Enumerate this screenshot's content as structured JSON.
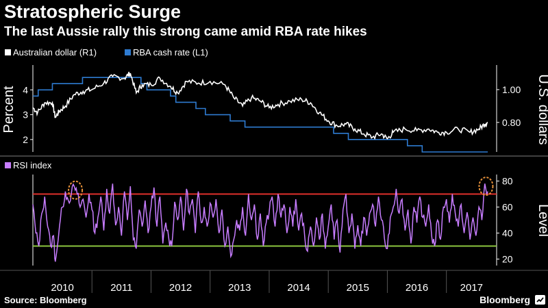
{
  "header": {
    "title": "Stratospheric Surge",
    "subtitle": "The last Aussie rally this strong came amid RBA rate hikes"
  },
  "footer": {
    "source": "Source: Bloomberg",
    "brand": "Bloomberg"
  },
  "colors": {
    "background": "#000000",
    "aud_line": "#ffffff",
    "rba_line": "#2e7bd1",
    "rsi_line": "#c77dff",
    "overbought_line": "#e0302b",
    "oversold_line": "#8cc63f",
    "highlight_circle": "#e8923a"
  },
  "chart_data": [
    {
      "type": "line",
      "legend_position": "top-left",
      "x_range": [
        2010.0,
        2017.85
      ],
      "left_axis": {
        "label": "Percent",
        "range": [
          1.5,
          5.0
        ],
        "ticks": [
          2,
          3,
          4
        ]
      },
      "right_axis": {
        "label": "U.S. dollars",
        "range": [
          0.62,
          1.15
        ],
        "ticks": [
          "0.80",
          "1.00"
        ]
      },
      "series": [
        {
          "name": "RBA cash rate (L1)",
          "axis": "left",
          "step": true,
          "points": [
            [
              2010.0,
              3.75
            ],
            [
              2010.09,
              4.0
            ],
            [
              2010.33,
              4.25
            ],
            [
              2010.84,
              4.5
            ],
            [
              2011.83,
              4.25
            ],
            [
              2011.93,
              4.0
            ],
            [
              2012.33,
              3.75
            ],
            [
              2012.42,
              3.5
            ],
            [
              2012.76,
              3.25
            ],
            [
              2012.92,
              3.0
            ],
            [
              2013.34,
              2.75
            ],
            [
              2013.59,
              2.5
            ],
            [
              2015.09,
              2.25
            ],
            [
              2015.34,
              2.0
            ],
            [
              2016.34,
              1.75
            ],
            [
              2016.59,
              1.5
            ],
            [
              2017.7,
              1.5
            ]
          ]
        },
        {
          "name": "Australian dollar (R1)",
          "axis": "right",
          "points": [
            [
              2010.0,
              0.89
            ],
            [
              2010.08,
              0.86
            ],
            [
              2010.2,
              0.92
            ],
            [
              2010.33,
              0.92
            ],
            [
              2010.38,
              0.83
            ],
            [
              2010.45,
              0.87
            ],
            [
              2010.55,
              0.9
            ],
            [
              2010.7,
              0.97
            ],
            [
              2010.85,
              0.99
            ],
            [
              2011.0,
              1.0
            ],
            [
              2011.2,
              1.04
            ],
            [
              2011.35,
              1.08
            ],
            [
              2011.55,
              1.07
            ],
            [
              2011.65,
              1.1
            ],
            [
              2011.75,
              0.98
            ],
            [
              2011.85,
              1.03
            ],
            [
              2012.0,
              1.03
            ],
            [
              2012.15,
              1.07
            ],
            [
              2012.33,
              1.02
            ],
            [
              2012.45,
              0.98
            ],
            [
              2012.6,
              1.05
            ],
            [
              2012.8,
              1.04
            ],
            [
              2013.0,
              1.05
            ],
            [
              2013.25,
              1.03
            ],
            [
              2013.4,
              0.95
            ],
            [
              2013.55,
              0.9
            ],
            [
              2013.7,
              0.95
            ],
            [
              2013.85,
              0.93
            ],
            [
              2014.0,
              0.89
            ],
            [
              2014.15,
              0.91
            ],
            [
              2014.35,
              0.93
            ],
            [
              2014.55,
              0.94
            ],
            [
              2014.7,
              0.92
            ],
            [
              2014.85,
              0.86
            ],
            [
              2015.0,
              0.81
            ],
            [
              2015.15,
              0.78
            ],
            [
              2015.3,
              0.79
            ],
            [
              2015.45,
              0.76
            ],
            [
              2015.6,
              0.73
            ],
            [
              2015.75,
              0.71
            ],
            [
              2015.9,
              0.73
            ],
            [
              2016.0,
              0.7
            ],
            [
              2016.1,
              0.74
            ],
            [
              2016.3,
              0.76
            ],
            [
              2016.5,
              0.75
            ],
            [
              2016.7,
              0.76
            ],
            [
              2016.85,
              0.74
            ],
            [
              2017.0,
              0.74
            ],
            [
              2017.2,
              0.76
            ],
            [
              2017.4,
              0.74
            ],
            [
              2017.55,
              0.76
            ],
            [
              2017.65,
              0.79
            ],
            [
              2017.7,
              0.8
            ]
          ]
        }
      ]
    },
    {
      "type": "line",
      "x_range": [
        2010.0,
        2017.85
      ],
      "y_axis": {
        "label": "Level",
        "range": [
          15,
          85
        ],
        "ticks": [
          20,
          40,
          60,
          80
        ]
      },
      "reference_lines": [
        {
          "value": 70,
          "color": "#e0302b"
        },
        {
          "value": 30,
          "color": "#8cc63f"
        }
      ],
      "highlights": [
        {
          "x": 2010.72,
          "y": 73
        },
        {
          "x": 2017.67,
          "y": 76
        }
      ],
      "series": [
        {
          "name": "RSI index",
          "points": [
            [
              2010.0,
              62
            ],
            [
              2010.05,
              40
            ],
            [
              2010.1,
              30
            ],
            [
              2010.15,
              55
            ],
            [
              2010.2,
              68
            ],
            [
              2010.25,
              45
            ],
            [
              2010.3,
              30
            ],
            [
              2010.35,
              38
            ],
            [
              2010.38,
              18
            ],
            [
              2010.45,
              45
            ],
            [
              2010.5,
              60
            ],
            [
              2010.55,
              72
            ],
            [
              2010.6,
              65
            ],
            [
              2010.65,
              70
            ],
            [
              2010.7,
              76
            ],
            [
              2010.75,
              70
            ],
            [
              2010.8,
              60
            ],
            [
              2010.85,
              66
            ],
            [
              2010.9,
              52
            ],
            [
              2010.95,
              70
            ],
            [
              2011.0,
              58
            ],
            [
              2011.05,
              40
            ],
            [
              2011.1,
              52
            ],
            [
              2011.15,
              68
            ],
            [
              2011.2,
              42
            ],
            [
              2011.25,
              74
            ],
            [
              2011.3,
              55
            ],
            [
              2011.35,
              78
            ],
            [
              2011.4,
              46
            ],
            [
              2011.45,
              60
            ],
            [
              2011.5,
              38
            ],
            [
              2011.55,
              72
            ],
            [
              2011.6,
              50
            ],
            [
              2011.65,
              76
            ],
            [
              2011.7,
              35
            ],
            [
              2011.75,
              28
            ],
            [
              2011.8,
              58
            ],
            [
              2011.85,
              45
            ],
            [
              2011.9,
              65
            ],
            [
              2011.95,
              40
            ],
            [
              2012.0,
              60
            ],
            [
              2012.05,
              75
            ],
            [
              2012.1,
              45
            ],
            [
              2012.15,
              68
            ],
            [
              2012.2,
              32
            ],
            [
              2012.25,
              48
            ],
            [
              2012.3,
              36
            ],
            [
              2012.35,
              30
            ],
            [
              2012.4,
              64
            ],
            [
              2012.45,
              50
            ],
            [
              2012.5,
              68
            ],
            [
              2012.55,
              42
            ],
            [
              2012.6,
              74
            ],
            [
              2012.65,
              55
            ],
            [
              2012.7,
              66
            ],
            [
              2012.75,
              40
            ],
            [
              2012.8,
              72
            ],
            [
              2012.85,
              48
            ],
            [
              2012.9,
              60
            ],
            [
              2012.95,
              45
            ],
            [
              2013.0,
              63
            ],
            [
              2013.05,
              52
            ],
            [
              2013.1,
              66
            ],
            [
              2013.15,
              40
            ],
            [
              2013.2,
              58
            ],
            [
              2013.25,
              30
            ],
            [
              2013.3,
              45
            ],
            [
              2013.35,
              22
            ],
            [
              2013.4,
              35
            ],
            [
              2013.45,
              50
            ],
            [
              2013.5,
              42
            ],
            [
              2013.55,
              60
            ],
            [
              2013.6,
              38
            ],
            [
              2013.65,
              70
            ],
            [
              2013.7,
              50
            ],
            [
              2013.75,
              62
            ],
            [
              2013.8,
              35
            ],
            [
              2013.85,
              55
            ],
            [
              2013.9,
              30
            ],
            [
              2013.95,
              48
            ],
            [
              2014.0,
              56
            ],
            [
              2014.05,
              68
            ],
            [
              2014.1,
              45
            ],
            [
              2014.15,
              70
            ],
            [
              2014.2,
              52
            ],
            [
              2014.25,
              62
            ],
            [
              2014.3,
              40
            ],
            [
              2014.35,
              60
            ],
            [
              2014.4,
              45
            ],
            [
              2014.45,
              66
            ],
            [
              2014.5,
              42
            ],
            [
              2014.55,
              55
            ],
            [
              2014.6,
              38
            ],
            [
              2014.65,
              26
            ],
            [
              2014.7,
              45
            ],
            [
              2014.75,
              30
            ],
            [
              2014.8,
              52
            ],
            [
              2014.85,
              35
            ],
            [
              2014.9,
              55
            ],
            [
              2014.95,
              28
            ],
            [
              2015.0,
              45
            ],
            [
              2015.05,
              62
            ],
            [
              2015.1,
              35
            ],
            [
              2015.15,
              50
            ],
            [
              2015.2,
              25
            ],
            [
              2015.25,
              58
            ],
            [
              2015.3,
              70
            ],
            [
              2015.35,
              40
            ],
            [
              2015.4,
              55
            ],
            [
              2015.45,
              28
            ],
            [
              2015.5,
              46
            ],
            [
              2015.55,
              30
            ],
            [
              2015.6,
              52
            ],
            [
              2015.65,
              38
            ],
            [
              2015.7,
              55
            ],
            [
              2015.75,
              62
            ],
            [
              2015.8,
              45
            ],
            [
              2015.85,
              68
            ],
            [
              2015.9,
              50
            ],
            [
              2015.95,
              36
            ],
            [
              2016.0,
              28
            ],
            [
              2016.05,
              52
            ],
            [
              2016.1,
              60
            ],
            [
              2016.15,
              74
            ],
            [
              2016.2,
              55
            ],
            [
              2016.25,
              66
            ],
            [
              2016.3,
              42
            ],
            [
              2016.35,
              58
            ],
            [
              2016.4,
              32
            ],
            [
              2016.45,
              60
            ],
            [
              2016.5,
              48
            ],
            [
              2016.55,
              68
            ],
            [
              2016.6,
              52
            ],
            [
              2016.65,
              45
            ],
            [
              2016.7,
              62
            ],
            [
              2016.75,
              38
            ],
            [
              2016.8,
              30
            ],
            [
              2016.85,
              50
            ],
            [
              2016.9,
              35
            ],
            [
              2016.95,
              60
            ],
            [
              2017.0,
              66
            ],
            [
              2017.05,
              48
            ],
            [
              2017.1,
              70
            ],
            [
              2017.15,
              55
            ],
            [
              2017.2,
              45
            ],
            [
              2017.25,
              62
            ],
            [
              2017.3,
              40
            ],
            [
              2017.35,
              56
            ],
            [
              2017.4,
              35
            ],
            [
              2017.45,
              52
            ],
            [
              2017.5,
              38
            ],
            [
              2017.55,
              60
            ],
            [
              2017.6,
              50
            ],
            [
              2017.65,
              78
            ],
            [
              2017.7,
              72
            ]
          ]
        }
      ]
    }
  ],
  "x_axis": {
    "years": [
      "2010",
      "2011",
      "2012",
      "2013",
      "2014",
      "2015",
      "2016",
      "2017"
    ]
  }
}
